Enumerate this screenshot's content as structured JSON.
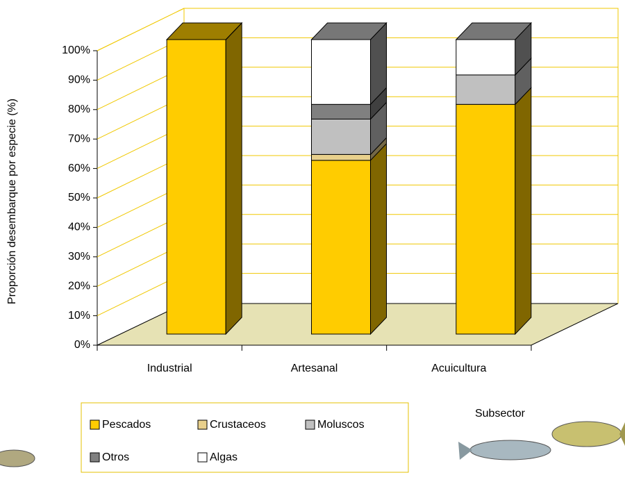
{
  "chart_data": {
    "type": "bar",
    "stacked": true,
    "y_axis_title": "Proporción desembarque por especie (%)",
    "x_axis_title": "Subsector",
    "categories": [
      "Industrial",
      "Artesanal",
      "Acuicultura"
    ],
    "series": [
      {
        "name": "Pescados",
        "color": "#ffcc00",
        "values": [
          100,
          59,
          78
        ]
      },
      {
        "name": "Crustaceos",
        "color": "#e8d08c",
        "values": [
          0,
          2,
          0
        ]
      },
      {
        "name": "Moluscos",
        "color": "#c0c0c0",
        "values": [
          0,
          12,
          10
        ]
      },
      {
        "name": "Otros",
        "color": "#808080",
        "values": [
          0,
          5,
          0
        ]
      },
      {
        "name": "Algas",
        "color": "#ffffff",
        "values": [
          0,
          22,
          12
        ]
      }
    ],
    "ylim": [
      0,
      100
    ],
    "yticks": [
      {
        "value": 0,
        "label": "0%"
      },
      {
        "value": 10,
        "label": "10%"
      },
      {
        "value": 20,
        "label": "20%"
      },
      {
        "value": 30,
        "label": "30%"
      },
      {
        "value": 40,
        "label": "40%"
      },
      {
        "value": 50,
        "label": "50%"
      },
      {
        "value": 60,
        "label": "60%"
      },
      {
        "value": 70,
        "label": "70%"
      },
      {
        "value": 80,
        "label": "80%"
      },
      {
        "value": 90,
        "label": "90%"
      },
      {
        "value": 100,
        "label": "100%"
      }
    ],
    "grid": true
  }
}
